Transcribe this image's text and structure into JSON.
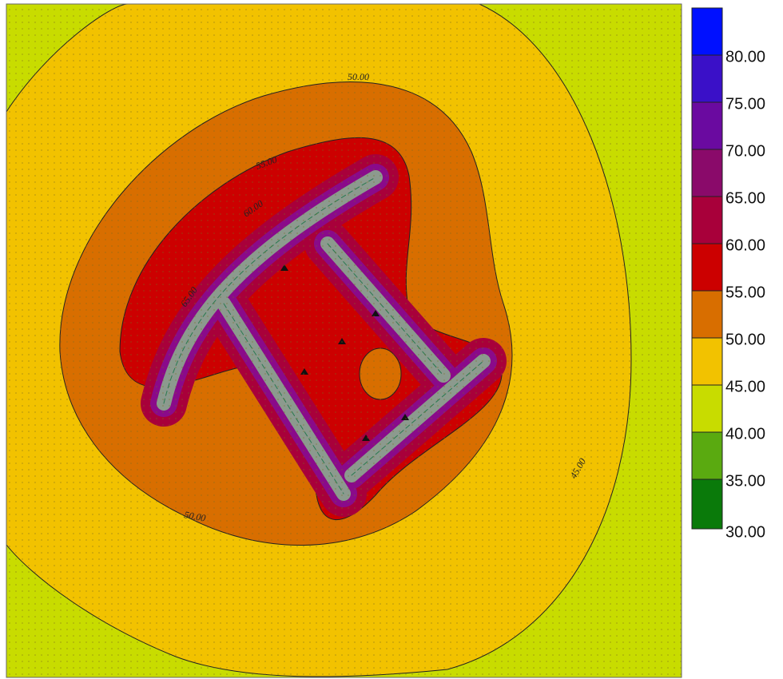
{
  "legend": {
    "labels": [
      "80.00",
      "75.00",
      "70.00",
      "65.00",
      "60.00",
      "55.00",
      "50.00",
      "45.00",
      "40.00",
      "35.00",
      "30.00"
    ]
  },
  "contour_labels": [
    "50.00",
    "55.00",
    "60.00",
    "65.00",
    "45.00",
    "50.00"
  ]
}
